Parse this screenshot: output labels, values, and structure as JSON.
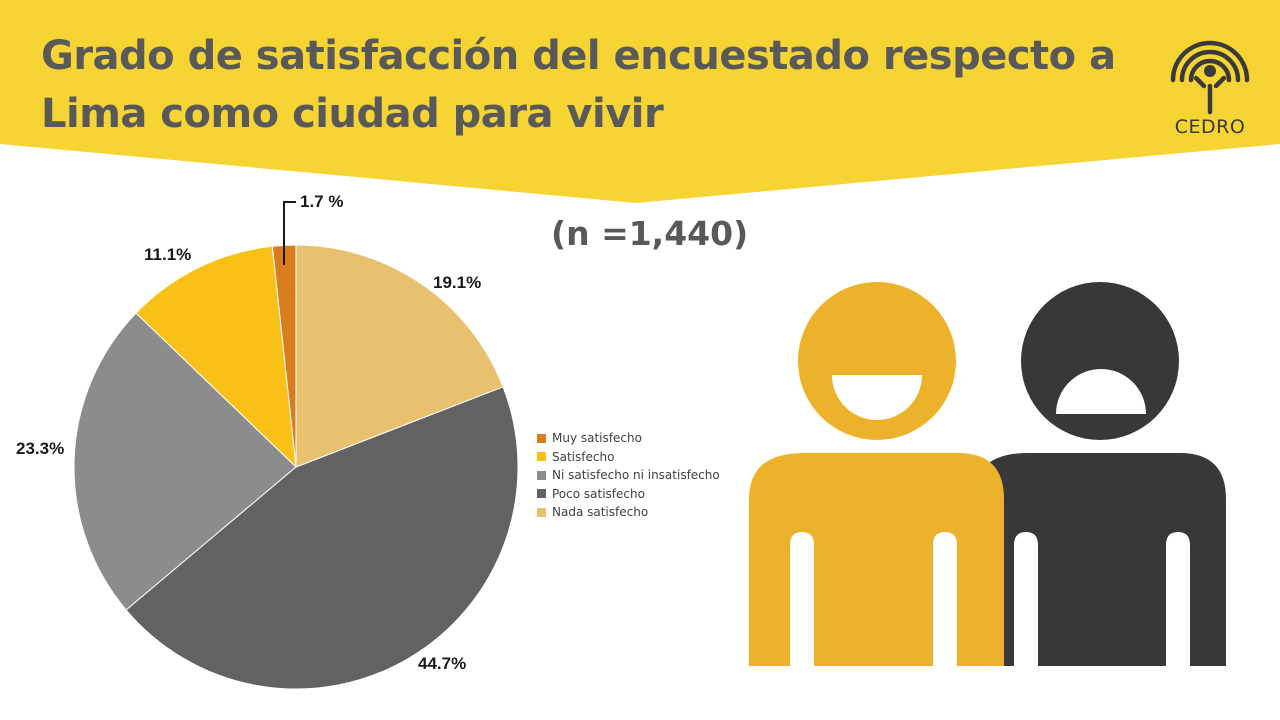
{
  "header": {
    "title_line1": "Grado de satisfacción del encuestado respecto a",
    "title_line2": "Lima como ciudad para vivir",
    "banner_color": "#F5D433",
    "logo_text": "CEDRO",
    "logo_icon": "cedro-logo-icon"
  },
  "sample_size": "(n =1,440)",
  "chart_data": {
    "type": "pie",
    "title": "",
    "slices": [
      {
        "name": "Muy satisfecho",
        "value": 1.7,
        "label": "1.7 %",
        "color": "#D97E1E"
      },
      {
        "name": "Satisfecho",
        "value": 11.1,
        "label": "11.1%",
        "color": "#F9C118"
      },
      {
        "name": "Ni satisfecho ni insatisfecho",
        "value": 23.3,
        "label": "23.3%",
        "color": "#8C8C8C"
      },
      {
        "name": "Poco satisfecho",
        "value": 44.7,
        "label": "44.7%",
        "color": "#626262"
      },
      {
        "name": "Nada satisfecho",
        "value": 19.1,
        "label": "19.1%",
        "color": "#E9C16E"
      }
    ],
    "legend_position": "right"
  },
  "illustration": {
    "icon": "two-people-icon",
    "person_left_color": "#EDB22B",
    "person_right_color": "#383838"
  }
}
